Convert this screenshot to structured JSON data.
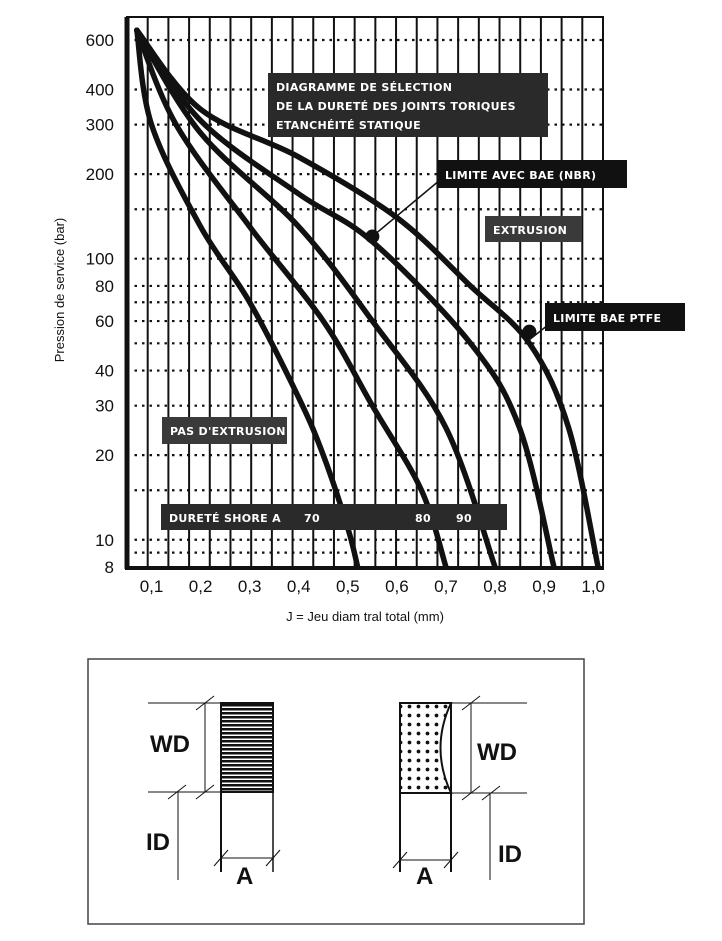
{
  "chart_data": {
    "type": "line",
    "title": [
      "DIAGRAMME DE SÉLECTION",
      "DE LA DURETÉ DES JOINTS TORIQUES",
      "ETANCHÉITÉ STATIQUE"
    ],
    "xlabel": "J = Jeu  diam tral  total (mm)",
    "ylabel": "Pression de service (bar)",
    "yscale": "log",
    "xlim": [
      0.05,
      1.02
    ],
    "ylim": [
      8,
      700
    ],
    "x_ticks": [
      0.1,
      0.2,
      0.3,
      0.4,
      0.5,
      0.6,
      0.7,
      0.8,
      0.9,
      1.0
    ],
    "x_tick_labels": [
      "0,1",
      "0,2",
      "0,3",
      "0,4",
      "0,5",
      "0,6",
      "0,7",
      "0,8",
      "0,9",
      "1,0"
    ],
    "y_ticks": [
      600,
      400,
      300,
      200,
      100,
      80,
      60,
      40,
      30,
      20,
      10,
      8
    ],
    "y_tick_labels": [
      "600",
      "400",
      "300",
      "200",
      "100",
      "80",
      "60",
      "40",
      "30",
      "20",
      "10",
      "8"
    ],
    "y_dotted_grid": [
      600,
      400,
      300,
      200,
      150,
      100,
      80,
      70,
      60,
      50,
      40,
      30,
      20,
      15,
      10,
      9
    ],
    "grid": true,
    "series": [
      {
        "points": [
          [
            0.07,
            650
          ],
          [
            0.1,
            300
          ],
          [
            0.2,
            130
          ],
          [
            0.3,
            70
          ],
          [
            0.4,
            32
          ],
          [
            0.45,
            20
          ],
          [
            0.5,
            11
          ],
          [
            0.52,
            8
          ]
        ]
      },
      {
        "points": [
          [
            0.07,
            650
          ],
          [
            0.15,
            300
          ],
          [
            0.3,
            130
          ],
          [
            0.45,
            60
          ],
          [
            0.55,
            30
          ],
          [
            0.65,
            15
          ],
          [
            0.7,
            8
          ]
        ]
      },
      {
        "points": [
          [
            0.07,
            650
          ],
          [
            0.2,
            280
          ],
          [
            0.4,
            130
          ],
          [
            0.55,
            60
          ],
          [
            0.7,
            25
          ],
          [
            0.8,
            8
          ]
        ]
      },
      {
        "points": [
          [
            0.07,
            650
          ],
          [
            0.2,
            310
          ],
          [
            0.4,
            170
          ],
          [
            0.55,
            115
          ],
          [
            0.75,
            50
          ],
          [
            0.85,
            25
          ],
          [
            0.92,
            8
          ]
        ]
      },
      {
        "points": [
          [
            0.07,
            650
          ],
          [
            0.2,
            340
          ],
          [
            0.4,
            230
          ],
          [
            0.6,
            140
          ],
          [
            0.75,
            80
          ],
          [
            0.87,
            50
          ],
          [
            0.95,
            25
          ],
          [
            1.01,
            8
          ]
        ]
      }
    ],
    "annotations": {
      "nbr_limit": {
        "text": "LIMITE AVEC BAE (NBR)",
        "point": [
          0.55,
          120
        ]
      },
      "ptfe_limit": {
        "text": "LIMITE BAE PTFE",
        "point": [
          0.87,
          55
        ]
      },
      "extrusion": "EXTRUSION",
      "no_extrusion": "PAS D'EXTRUSION",
      "hardness": {
        "label": "DURETÉ SHORE A",
        "values": [
          "70",
          "80",
          "90"
        ]
      }
    }
  },
  "diagram": {
    "left": {
      "wd": "WD",
      "id": "ID",
      "a": "A"
    },
    "right": {
      "wd": "WD",
      "id": "ID",
      "a": "A"
    }
  },
  "colors": {
    "ink": "#111111",
    "label_bg": "#2a2a2a"
  }
}
